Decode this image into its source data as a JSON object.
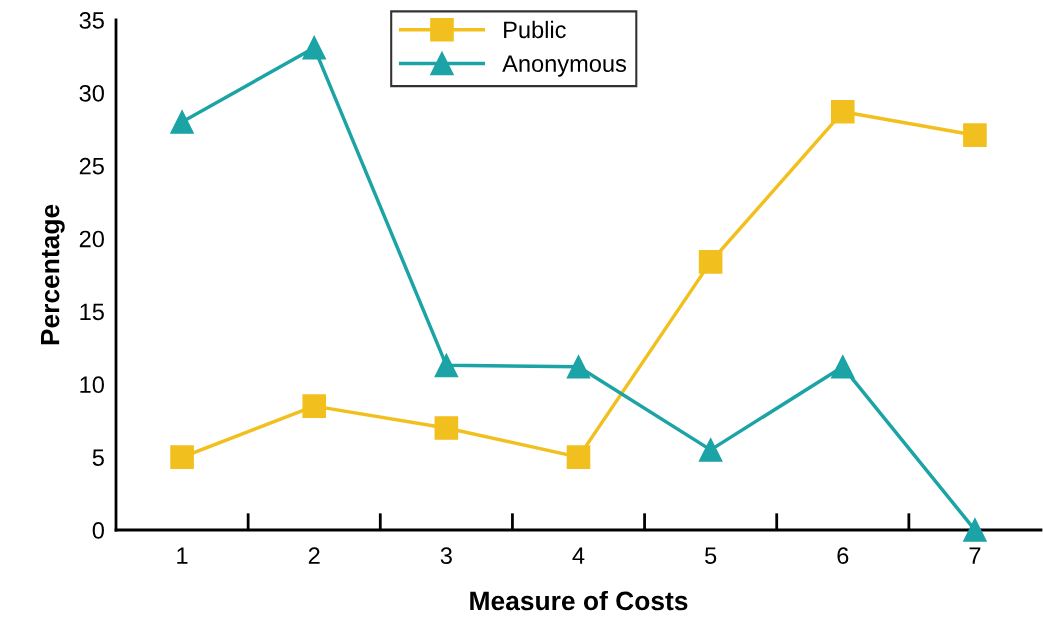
{
  "chart_data": {
    "type": "line",
    "xlabel": "Measure of Costs",
    "ylabel": "Percentage",
    "categories": [
      "1",
      "2",
      "3",
      "4",
      "5",
      "6",
      "7"
    ],
    "series": [
      {
        "name": "Public",
        "color": "#f2c01e",
        "marker": "square",
        "values": [
          5,
          8.5,
          7,
          5,
          18.4,
          28.7,
          27.1
        ]
      },
      {
        "name": "Anonymous",
        "color": "#1ba3a6",
        "marker": "triangle",
        "values": [
          28,
          33.1,
          11.3,
          11.2,
          5.5,
          11.2,
          0
        ]
      }
    ],
    "ylim": [
      0,
      35
    ],
    "yticks": [
      0,
      5,
      10,
      15,
      20,
      25,
      30,
      35
    ],
    "grid": false,
    "legend": "top",
    "line_style": "solid"
  }
}
